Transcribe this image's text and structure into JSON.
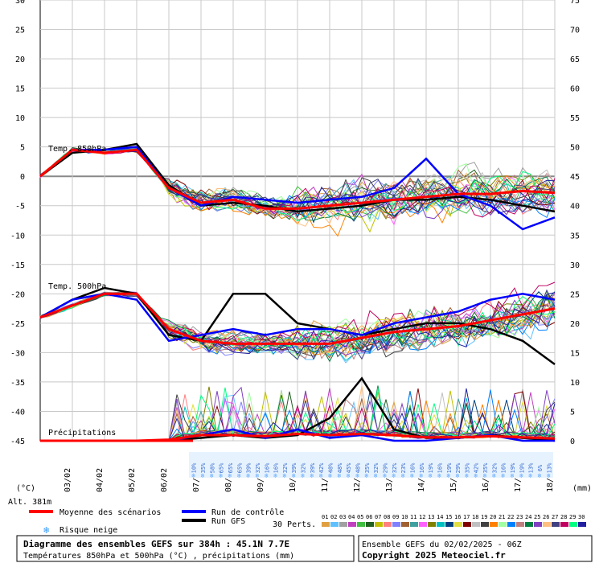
{
  "chart_data": {
    "type": "line",
    "title": "Diagramme des ensembles GEFS sur 384h : 45.1N 7.7E",
    "subtitle": "Températures 850hPa et 500hPa (°C) , précipitations (mm)",
    "y_left_unit": "(°C)",
    "y_right_unit": "(mm)",
    "altitude": "Alt. 381m",
    "ylim_temp": [
      -45,
      30
    ],
    "yticks_left": [
      "30",
      "25",
      "20",
      "15",
      "10",
      "5",
      "0",
      "-5",
      "-10",
      "-15",
      "-20",
      "-25",
      "-30",
      "-35",
      "-40",
      "-45"
    ],
    "yticks_right_upper": [
      "75",
      "70",
      "65",
      "60",
      "55",
      "50",
      "45",
      "40",
      "35"
    ],
    "yticks_right_lower": [
      "30",
      "25",
      "20",
      "15",
      "10",
      "5",
      "0"
    ],
    "x_dates": [
      "03/02",
      "04/02",
      "05/02",
      "06/02",
      "07/02",
      "08/02",
      "09/02",
      "10/02",
      "11/02",
      "12/02",
      "13/02",
      "14/02",
      "15/02",
      "16/02",
      "17/02",
      "18/02"
    ],
    "panel_labels": {
      "t850": "Temp. 850hPa",
      "t500": "Temp. 500hPa",
      "precip": "Précipitations"
    },
    "hours": [
      0,
      24,
      48,
      72,
      96,
      120,
      144,
      168,
      192,
      216,
      240,
      264,
      288,
      312,
      336,
      360,
      384
    ],
    "series": [
      {
        "name": "Moyenne des scénarios",
        "panel": "t850",
        "color": "#ff0000",
        "values": [
          0,
          4.5,
          4.0,
          4.5,
          -2.0,
          -4.5,
          -4.0,
          -5.5,
          -5.5,
          -5.0,
          -4.5,
          -4.0,
          -3.5,
          -3.0,
          -3.0,
          -2.5,
          -2.8
        ]
      },
      {
        "name": "Run de contrôle",
        "panel": "t850",
        "color": "#0000ff",
        "values": [
          0,
          4.5,
          4.5,
          5.0,
          -2.0,
          -5.0,
          -3.5,
          -4.0,
          -4.5,
          -4.0,
          -3.5,
          -2.0,
          3.0,
          -3.0,
          -5.0,
          -9.0,
          -7.0
        ]
      },
      {
        "name": "Run GFS",
        "panel": "t850",
        "color": "#000000",
        "values": [
          0,
          4.0,
          4.5,
          5.5,
          -1.5,
          -5.0,
          -4.5,
          -5.0,
          -6.0,
          -5.5,
          -5.0,
          -4.0,
          -4.0,
          -3.5,
          -4.0,
          -5.0,
          -6.0
        ]
      },
      {
        "name": "Moyenne des scénarios",
        "panel": "t500",
        "color": "#ff0000",
        "values": [
          -24,
          -22,
          -20,
          -20,
          -26,
          -28,
          -28.5,
          -28.5,
          -28.5,
          -28.5,
          -27.5,
          -26.5,
          -26,
          -25.5,
          -24.5,
          -23.5,
          -22.5
        ]
      },
      {
        "name": "Run de contrôle",
        "panel": "t500",
        "color": "#0000ff",
        "values": [
          -24,
          -21,
          -20,
          -21,
          -28,
          -27,
          -26,
          -27,
          -26,
          -26,
          -27,
          -25,
          -24,
          -23,
          -21,
          -20,
          -21
        ]
      },
      {
        "name": "Run GFS",
        "panel": "t500",
        "color": "#000000",
        "values": [
          -24,
          -21,
          -19,
          -20,
          -27,
          -28,
          -20,
          -20,
          -25,
          -26,
          -27,
          -26,
          -25,
          -25,
          -26,
          -28,
          -32
        ]
      },
      {
        "name": "Moyenne des scénarios",
        "panel": "precip",
        "color": "#ff0000",
        "values": [
          0,
          0,
          0,
          0,
          0.2,
          1.0,
          1.0,
          0.8,
          1.2,
          1.0,
          1.2,
          1.0,
          0.6,
          0.6,
          0.8,
          0.6,
          0.4
        ]
      },
      {
        "name": "Run de contrôle",
        "panel": "precip",
        "color": "#0000ff",
        "values": [
          0,
          0,
          0,
          0,
          0,
          1.0,
          2.0,
          0.5,
          2.0,
          0.5,
          1.0,
          0,
          0,
          0.5,
          1.0,
          0,
          0
        ]
      },
      {
        "name": "Run GFS",
        "panel": "precip",
        "color": "#000000",
        "values": [
          0,
          0,
          0,
          0,
          0,
          0.5,
          1.0,
          0.5,
          1.0,
          4.0,
          11.0,
          2.0,
          0.5,
          0.5,
          1.0,
          0.5,
          0
        ]
      }
    ],
    "snow_risk": [
      "10%",
      "35%",
      "58%",
      "65%",
      "65%",
      "65%",
      "39%",
      "32%",
      "16%",
      "16%",
      "32%",
      "39%",
      "32%",
      "39%",
      "42%",
      "48%",
      "48%",
      "45%",
      "48%",
      "35%",
      "32%",
      "29%",
      "32%",
      "23%",
      "16%",
      "16%",
      "19%",
      "16%",
      "19%",
      "29%",
      "35%",
      "42%",
      "35%",
      "32%",
      "16%",
      "19%",
      "19%",
      "13%",
      "6%",
      "13%"
    ],
    "legend": {
      "mean": "Moyenne des scénarios",
      "control": "Run de contrôle",
      "gfs": "Run GFS",
      "snow": "Risque neige",
      "perts_label": "30 Perts.",
      "pert_ids": [
        "01",
        "02",
        "03",
        "04",
        "05",
        "06",
        "07",
        "08",
        "09",
        "10",
        "11",
        "12",
        "13",
        "14",
        "15",
        "16",
        "17",
        "18",
        "19",
        "20",
        "21",
        "22",
        "23",
        "24",
        "25",
        "26",
        "27",
        "28",
        "29",
        "30"
      ],
      "pert_colors": [
        "#e0a040",
        "#60c0ff",
        "#a0a0a0",
        "#c040c0",
        "#40c040",
        "#206020",
        "#c0c000",
        "#ff8080",
        "#8080ff",
        "#a06030",
        "#40a0a0",
        "#ff60ff",
        "#808000",
        "#00c0c0",
        "#004080",
        "#e0e040",
        "#800000",
        "#c0c0c0",
        "#404040",
        "#ff8000",
        "#a0ffa0",
        "#0080ff",
        "#c08080",
        "#008040",
        "#8040c0",
        "#ffc080",
        "#404080",
        "#c00060",
        "#00ff80",
        "#2020a0"
      ]
    },
    "footer": {
      "ensemble": "Ensemble GEFS du 02/02/2025 - 06Z",
      "copyright": "Copyright 2025 Meteociel.fr"
    },
    "grid": true
  }
}
